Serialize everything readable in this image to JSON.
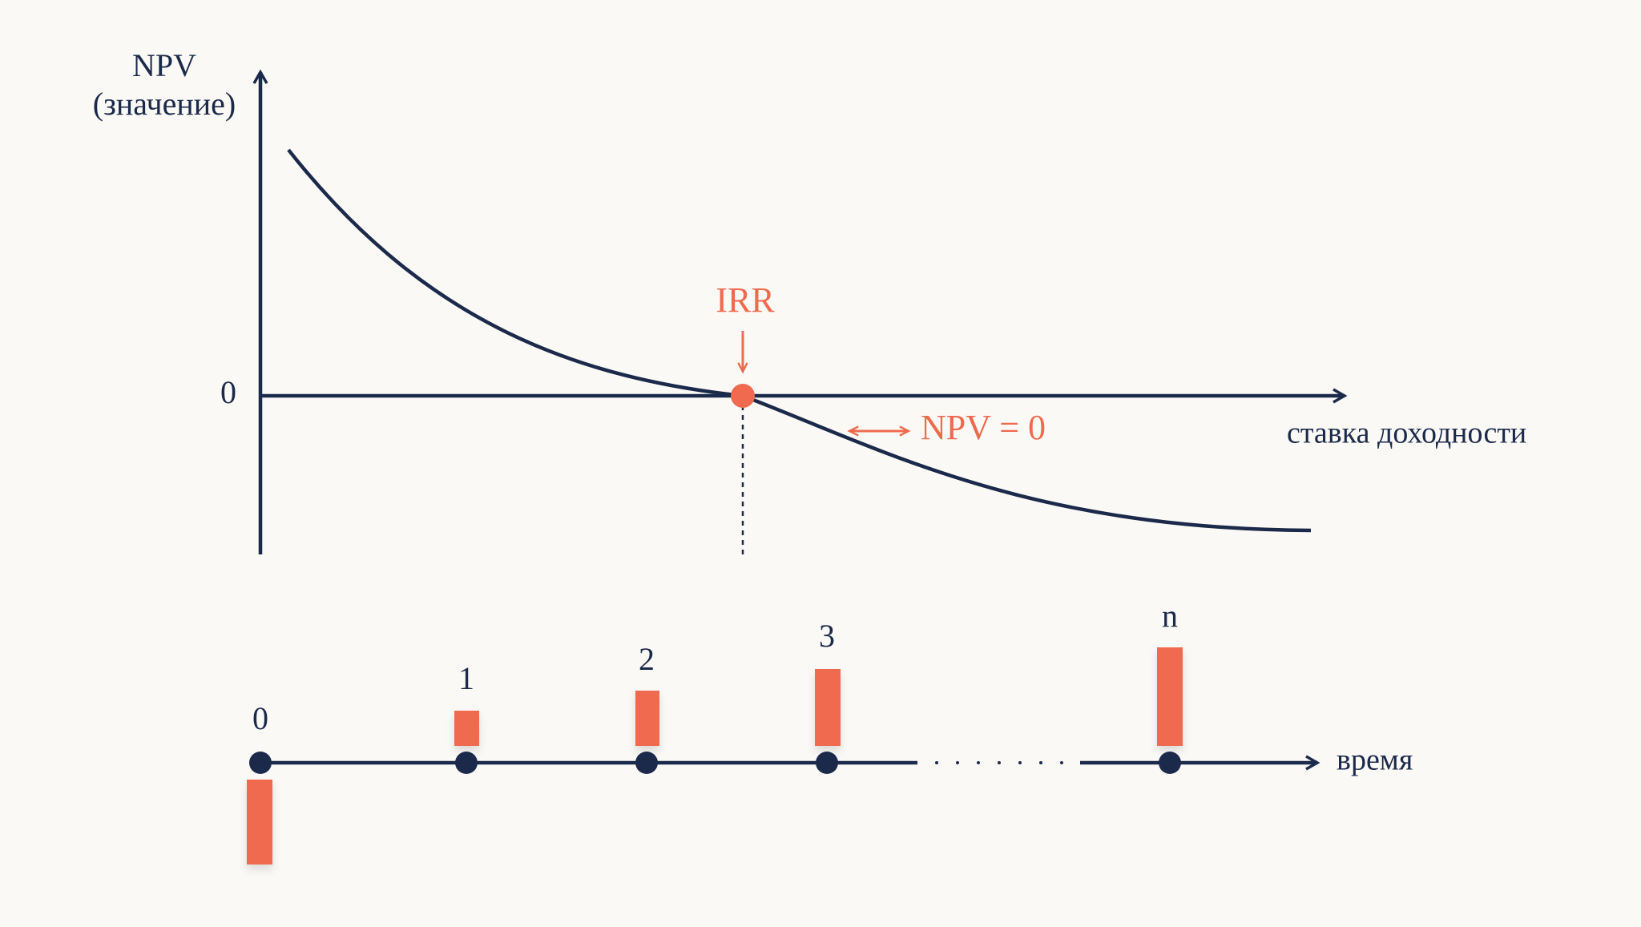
{
  "graph": {
    "y_axis_label": "NPV",
    "y_axis_sublabel": "(значение)",
    "zero_label": "0",
    "irr_label": "IRR",
    "npv_zero_label": "NPV = 0",
    "x_axis_label": "ставка доходности"
  },
  "timeline": {
    "periods": [
      "0",
      "1",
      "2",
      "3",
      "n"
    ],
    "axis_label": "время"
  }
}
